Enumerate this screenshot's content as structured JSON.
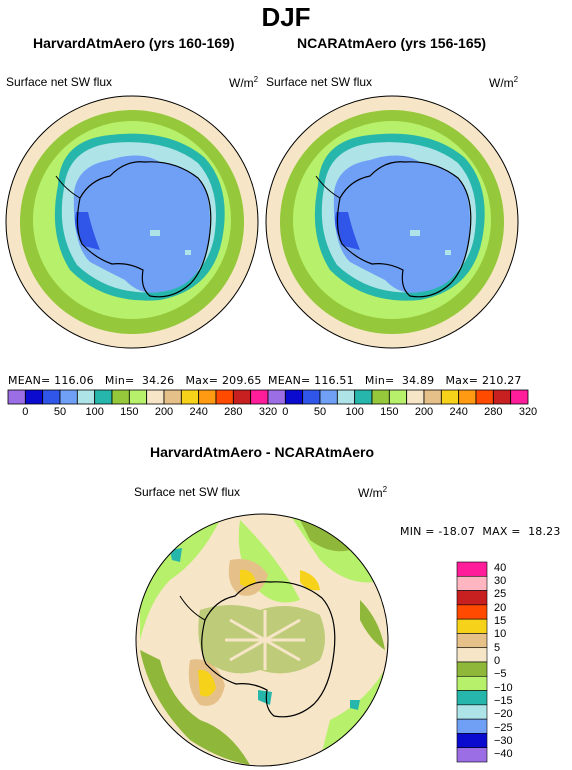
{
  "title": "DJF",
  "panels": [
    {
      "model_title": "HarvardAtmAero (yrs 160-169)",
      "variable": "Surface net SW flux",
      "units": "W/m",
      "units_sup": "2",
      "stats": {
        "mean_label": "MEAN=",
        "mean": "116.06",
        "min_label": "Min=",
        "min": "34.26",
        "max_label": "Max=",
        "max": "209.65"
      }
    },
    {
      "model_title": "NCARAtmAero (yrs 156-165)",
      "variable": "Surface net SW flux",
      "units": "W/m",
      "units_sup": "2",
      "stats": {
        "mean_label": "MEAN=",
        "mean": "116.51",
        "min_label": "Min=",
        "min": "34.89",
        "max_label": "Max=",
        "max": "210.27"
      }
    }
  ],
  "diff_panel": {
    "title": "HarvardAtmAero - NCARAtmAero",
    "variable": "Surface net SW flux",
    "units": "W/m",
    "units_sup": "2",
    "minmax": "MIN = -18.07  MAX =  18.23"
  },
  "colorbar": {
    "colors": [
      "#9b6ee6",
      "#0b0bcf",
      "#2f56e8",
      "#6fa0f5",
      "#aee3e8",
      "#27b6ab",
      "#95c83a",
      "#b7f06a",
      "#f6e6c7",
      "#e6c089",
      "#f6d21a",
      "#ff9a12",
      "#ff4a00",
      "#c82020",
      "#ff1d9a"
    ],
    "ticks": [
      "0",
      "50",
      "100",
      "150",
      "200",
      "240",
      "280",
      "320"
    ]
  },
  "diff_colorbar": {
    "colors": [
      "#9b6ee6",
      "#0b0bcf",
      "#6fa0f5",
      "#aee3e8",
      "#27b6ab",
      "#b7f06a",
      "#8fb73a",
      "#f6e6c7",
      "#e6c089",
      "#f6d21a",
      "#ff4a00",
      "#c82020",
      "#ffb6c1",
      "#ff1d9a"
    ],
    "ticks": [
      "40",
      "30",
      "25",
      "20",
      "15",
      "10",
      "5",
      "0",
      "−5",
      "−10",
      "−15",
      "−20",
      "−25",
      "−30",
      "−40"
    ]
  }
}
